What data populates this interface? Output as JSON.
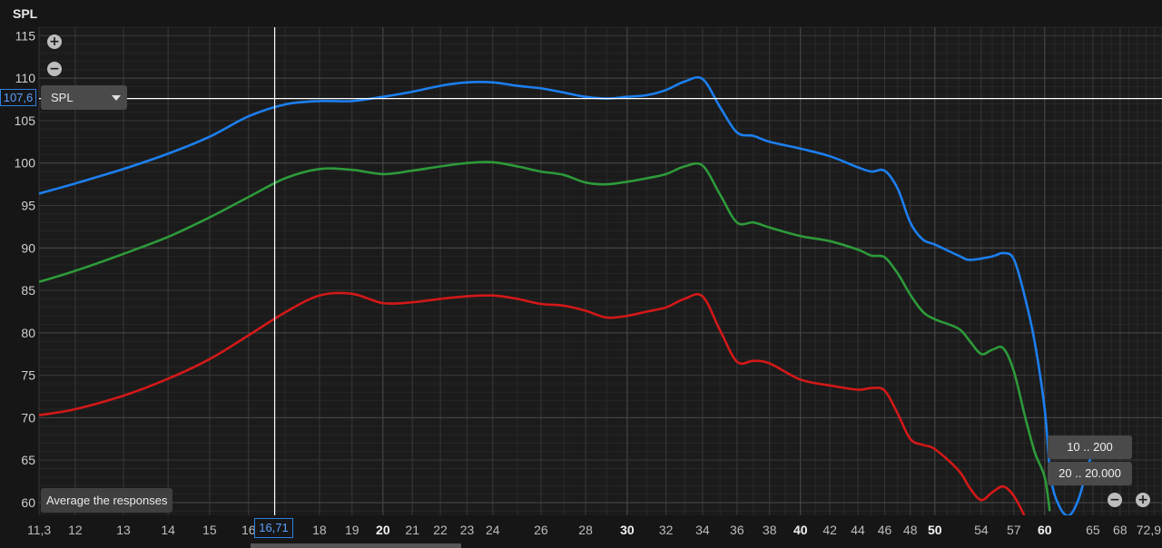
{
  "title": "SPL",
  "zoom_in_icon": "plus-circle-icon",
  "zoom_out_icon": "minus-circle-icon",
  "dropdown": {
    "label": "SPL"
  },
  "average_button": "Average the responses",
  "range_buttons": [
    "10 .. 200",
    "20 .. 20.000"
  ],
  "cursor": {
    "x_label": "16,71",
    "y_label": "107,6",
    "x": 16.71,
    "y": 107.6
  },
  "colors": {
    "background": "#161616",
    "grid": "#3a3a3a",
    "blue": "#1c7ff0",
    "green": "#2d9a3a",
    "red": "#d31818",
    "cursor": "#ffffff"
  },
  "chart_data": {
    "type": "line",
    "title": "SPL",
    "xscale": "log",
    "xlim": [
      11.3,
      72.9
    ],
    "ylim": [
      58.5,
      116
    ],
    "yticks": [
      60,
      65,
      70,
      75,
      80,
      85,
      90,
      95,
      100,
      105,
      110,
      115
    ],
    "xticks": [
      "11,3",
      "12",
      "13",
      "14",
      "15",
      "16",
      "18",
      "19",
      "20",
      "21",
      "22",
      "23",
      "24",
      "26",
      "28",
      "30",
      "32",
      "34",
      "36",
      "38",
      "40",
      "42",
      "44",
      "46",
      "48",
      "50",
      "54",
      "57",
      "60",
      "65",
      "68",
      "72,9"
    ],
    "xticks_bold": [
      "20",
      "30",
      "40",
      "50",
      "60"
    ],
    "grid": true,
    "series": [
      {
        "color": "#1c7ff0",
        "points": [
          [
            11.3,
            96.4
          ],
          [
            12,
            97.6
          ],
          [
            13,
            99.3
          ],
          [
            14,
            101.1
          ],
          [
            15,
            103.1
          ],
          [
            16,
            105.5
          ],
          [
            17,
            106.9
          ],
          [
            18,
            107.3
          ],
          [
            19,
            107.3
          ],
          [
            20,
            107.8
          ],
          [
            21,
            108.4
          ],
          [
            22,
            109.1
          ],
          [
            23,
            109.5
          ],
          [
            24,
            109.5
          ],
          [
            25,
            109.1
          ],
          [
            26,
            108.8
          ],
          [
            27,
            108.3
          ],
          [
            28,
            107.8
          ],
          [
            29,
            107.6
          ],
          [
            30,
            107.8
          ],
          [
            31,
            108.0
          ],
          [
            32,
            108.6
          ],
          [
            33,
            109.6
          ],
          [
            34,
            109.9
          ],
          [
            35,
            106.6
          ],
          [
            36,
            103.6
          ],
          [
            37,
            103.2
          ],
          [
            38,
            102.5
          ],
          [
            40,
            101.7
          ],
          [
            42,
            100.8
          ],
          [
            44,
            99.5
          ],
          [
            45,
            99.0
          ],
          [
            46,
            99.1
          ],
          [
            47,
            97.0
          ],
          [
            48,
            93.0
          ],
          [
            49,
            91.0
          ],
          [
            50,
            90.4
          ],
          [
            52,
            89.1
          ],
          [
            53,
            88.6
          ],
          [
            55,
            89.0
          ],
          [
            56,
            89.4
          ],
          [
            57,
            88.7
          ],
          [
            58,
            84.5
          ],
          [
            59,
            79.0
          ],
          [
            60,
            71.0
          ],
          [
            60.6,
            63.0
          ],
          [
            61.5,
            59.5
          ],
          [
            62.5,
            58.5
          ],
          [
            63.5,
            60.5
          ],
          [
            64.5,
            64.5
          ],
          [
            65.5,
            67.0
          ]
        ]
      },
      {
        "color": "#2d9a3a",
        "points": [
          [
            11.3,
            86.0
          ],
          [
            12,
            87.3
          ],
          [
            13,
            89.3
          ],
          [
            14,
            91.3
          ],
          [
            15,
            93.6
          ],
          [
            16,
            96.0
          ],
          [
            17,
            98.2
          ],
          [
            18,
            99.3
          ],
          [
            19,
            99.2
          ],
          [
            20,
            98.7
          ],
          [
            21,
            99.1
          ],
          [
            22,
            99.6
          ],
          [
            23,
            100.0
          ],
          [
            24,
            100.1
          ],
          [
            25,
            99.6
          ],
          [
            26,
            99.0
          ],
          [
            27,
            98.6
          ],
          [
            28,
            97.7
          ],
          [
            29,
            97.5
          ],
          [
            30,
            97.8
          ],
          [
            31,
            98.2
          ],
          [
            32,
            98.7
          ],
          [
            33,
            99.6
          ],
          [
            34,
            99.7
          ],
          [
            35,
            96.3
          ],
          [
            36,
            93.0
          ],
          [
            37,
            93.0
          ],
          [
            38,
            92.4
          ],
          [
            40,
            91.4
          ],
          [
            42,
            90.8
          ],
          [
            44,
            89.8
          ],
          [
            45,
            89.1
          ],
          [
            46,
            88.9
          ],
          [
            47,
            87.0
          ],
          [
            48,
            84.5
          ],
          [
            49,
            82.5
          ],
          [
            50,
            81.6
          ],
          [
            52,
            80.5
          ],
          [
            53,
            79.0
          ],
          [
            54,
            77.5
          ],
          [
            55,
            78.0
          ],
          [
            56,
            78.2
          ],
          [
            57,
            75.5
          ],
          [
            58,
            70.5
          ],
          [
            59,
            66.0
          ],
          [
            60,
            63.0
          ],
          [
            60.5,
            59.0
          ]
        ]
      },
      {
        "color": "#d31818",
        "points": [
          [
            11.3,
            70.3
          ],
          [
            12,
            71.0
          ],
          [
            13,
            72.6
          ],
          [
            14,
            74.6
          ],
          [
            15,
            76.9
          ],
          [
            16,
            79.7
          ],
          [
            17,
            82.4
          ],
          [
            18,
            84.4
          ],
          [
            19,
            84.6
          ],
          [
            20,
            83.5
          ],
          [
            21,
            83.6
          ],
          [
            22,
            84.0
          ],
          [
            23,
            84.3
          ],
          [
            24,
            84.4
          ],
          [
            25,
            84.0
          ],
          [
            26,
            83.4
          ],
          [
            27,
            83.2
          ],
          [
            28,
            82.6
          ],
          [
            29,
            81.8
          ],
          [
            30,
            82.0
          ],
          [
            31,
            82.5
          ],
          [
            32,
            83.0
          ],
          [
            33,
            84.0
          ],
          [
            34,
            84.3
          ],
          [
            35,
            80.3
          ],
          [
            36,
            76.6
          ],
          [
            37,
            76.7
          ],
          [
            38,
            76.4
          ],
          [
            40,
            74.5
          ],
          [
            42,
            73.8
          ],
          [
            44,
            73.3
          ],
          [
            45,
            73.5
          ],
          [
            46,
            73.2
          ],
          [
            47,
            70.5
          ],
          [
            48,
            67.5
          ],
          [
            49,
            66.8
          ],
          [
            50,
            66.3
          ],
          [
            52,
            63.8
          ],
          [
            53,
            61.7
          ],
          [
            54,
            60.3
          ],
          [
            55,
            61.2
          ],
          [
            56,
            61.9
          ],
          [
            57,
            60.8
          ],
          [
            58,
            58.5
          ]
        ]
      }
    ]
  }
}
